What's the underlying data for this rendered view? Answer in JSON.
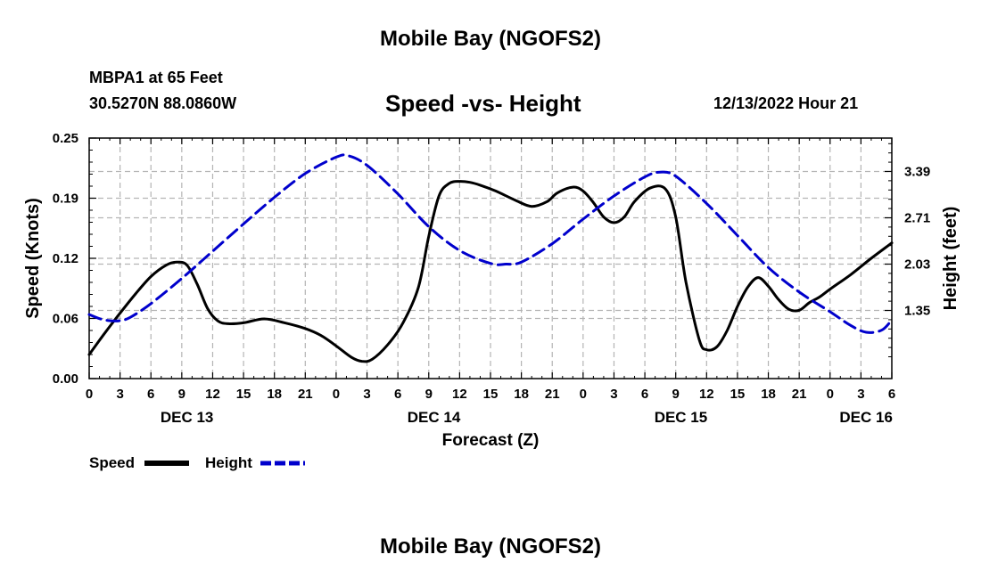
{
  "page": {
    "top_title": "Mobile Bay (NGOFS2)",
    "bottom_title": "Mobile Bay (NGOFS2)",
    "station": "MBPA1 at 65 Feet",
    "coords": "30.5270N  88.0860W",
    "datetime": "12/13/2022 Hour 21"
  },
  "chart_data": {
    "type": "line",
    "title": "Speed -vs- Height",
    "xlabel": "Forecast (Z)",
    "ylabel_left": "Speed (Knots)",
    "ylabel_right": "Height (feet)",
    "x_unit": "hours since DEC 13 00Z",
    "xlim": [
      0,
      78
    ],
    "x_ticks": [
      0,
      3,
      6,
      9,
      12,
      15,
      18,
      21,
      24,
      27,
      30,
      33,
      36,
      39,
      42,
      45,
      48,
      51,
      54,
      57,
      60,
      63,
      66,
      69,
      72,
      75,
      78
    ],
    "x_tick_labels": [
      "0",
      "3",
      "6",
      "9",
      "12",
      "15",
      "18",
      "21",
      "0",
      "3",
      "6",
      "9",
      "12",
      "15",
      "18",
      "21",
      "0",
      "3",
      "6",
      "9",
      "12",
      "15",
      "18",
      "21",
      "0",
      "3",
      "6"
    ],
    "date_labels": [
      {
        "x": 9.5,
        "label": "DEC 13"
      },
      {
        "x": 33.5,
        "label": "DEC 14"
      },
      {
        "x": 57.5,
        "label": "DEC 15"
      },
      {
        "x": 75.5,
        "label": "DEC 16"
      }
    ],
    "ylim_left": [
      0,
      0.25
    ],
    "y_ticks_left": [
      "0.00",
      "0.06",
      "0.12",
      "0.19",
      "0.25"
    ],
    "ylim_right": [
      0.35,
      3.88
    ],
    "y_ticks_right": [
      "1.35",
      "2.03",
      "2.71",
      "3.39"
    ],
    "grid": true,
    "legend_placement": "bottom-left",
    "series": [
      {
        "name": "Speed",
        "axis": "left",
        "color": "#000000",
        "style": "solid",
        "x": [
          0,
          1.5,
          3,
          4.5,
          6,
          7.5,
          8.5,
          9.5,
          10.5,
          11.5,
          12.5,
          13.5,
          15,
          17,
          19,
          21,
          22.5,
          24,
          25.5,
          26.5,
          27.5,
          29,
          30.5,
          32,
          33,
          34,
          35,
          36,
          37,
          38,
          39.5,
          41.5,
          43,
          44.5,
          45.5,
          47,
          48,
          49,
          50,
          51,
          52,
          53,
          54.5,
          56,
          57,
          58,
          59.3,
          60,
          61,
          62,
          63,
          64,
          65,
          66,
          67,
          68,
          69,
          70,
          71,
          72,
          74,
          76,
          78
        ],
        "y": [
          0.025,
          0.047,
          0.068,
          0.088,
          0.106,
          0.118,
          0.121,
          0.118,
          0.098,
          0.073,
          0.06,
          0.057,
          0.058,
          0.062,
          0.058,
          0.052,
          0.045,
          0.034,
          0.022,
          0.018,
          0.02,
          0.035,
          0.058,
          0.095,
          0.148,
          0.19,
          0.203,
          0.205,
          0.204,
          0.201,
          0.195,
          0.185,
          0.179,
          0.184,
          0.193,
          0.199,
          0.195,
          0.183,
          0.168,
          0.162,
          0.168,
          0.184,
          0.198,
          0.197,
          0.168,
          0.1,
          0.04,
          0.03,
          0.033,
          0.05,
          0.075,
          0.095,
          0.105,
          0.096,
          0.082,
          0.072,
          0.071,
          0.079,
          0.085,
          0.093,
          0.108,
          0.125,
          0.141
        ]
      },
      {
        "name": "Height",
        "axis": "right",
        "color": "#0000cc",
        "style": "dashed",
        "x": [
          0,
          1,
          2,
          3,
          4,
          6,
          9,
          12,
          15,
          18,
          21,
          24,
          25.2,
          27,
          30,
          33,
          36,
          39,
          40.5,
          42,
          45,
          48,
          51,
          54,
          55.5,
          57,
          60,
          63,
          66,
          69,
          72,
          74,
          75.5,
          77,
          78
        ],
        "y": [
          1.29,
          1.23,
          1.2,
          1.2,
          1.25,
          1.45,
          1.82,
          2.22,
          2.62,
          3.01,
          3.36,
          3.6,
          3.62,
          3.48,
          3.06,
          2.58,
          2.23,
          2.04,
          2.03,
          2.06,
          2.33,
          2.69,
          3.03,
          3.31,
          3.38,
          3.32,
          2.92,
          2.45,
          1.98,
          1.62,
          1.33,
          1.13,
          1.03,
          1.06,
          1.21
        ]
      }
    ]
  }
}
